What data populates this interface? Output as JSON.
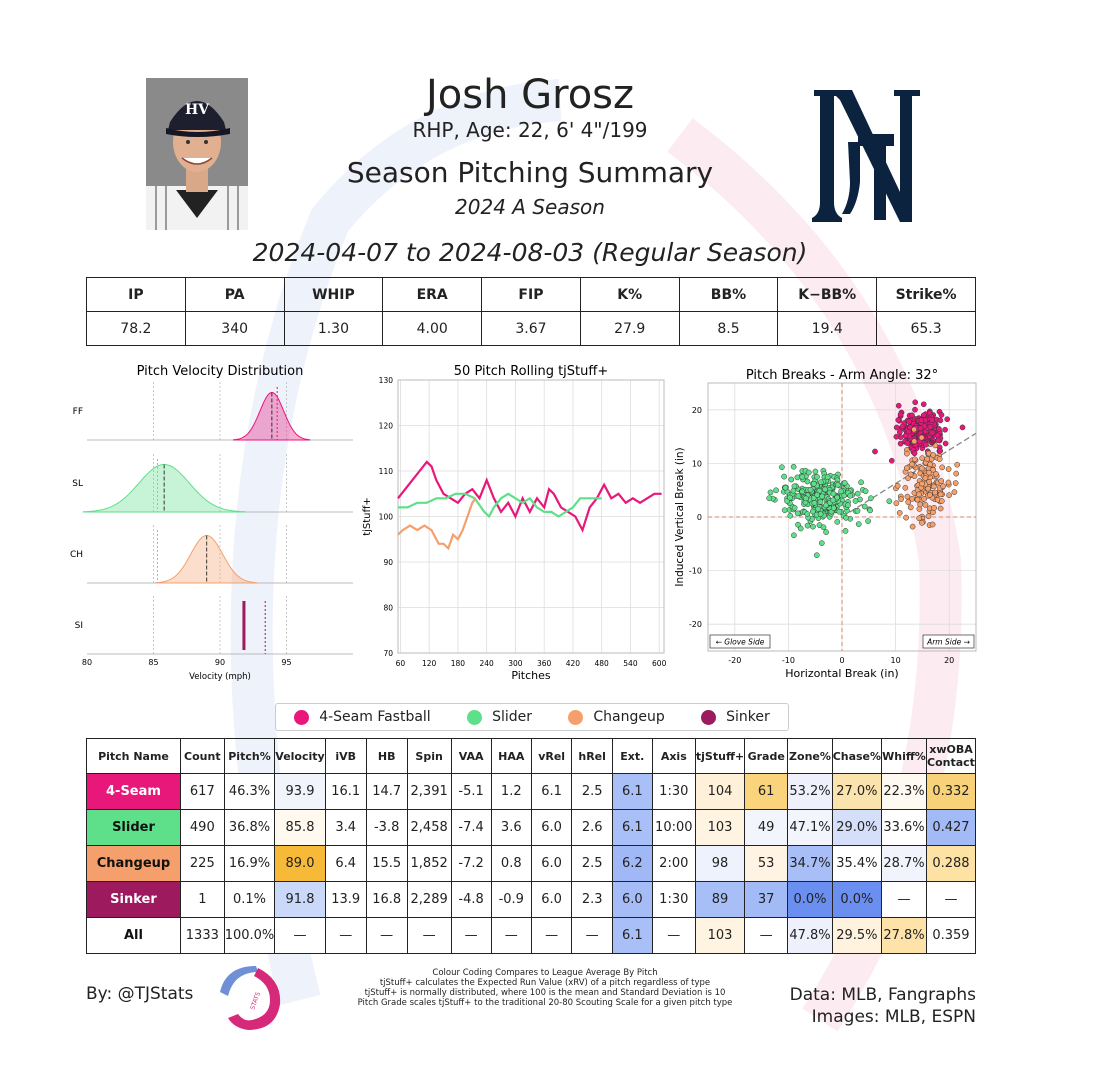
{
  "player": {
    "name": "Josh Grosz",
    "bio": "RHP, Age: 22, 6' 4\"/199",
    "summary_title": "Season Pitching Summary",
    "season_label": "2024 A Season",
    "date_range": "2024-04-07 to 2024-08-03 (Regular Season)"
  },
  "stats": {
    "headers": [
      "IP",
      "PA",
      "WHIP",
      "ERA",
      "FIP",
      "K%",
      "BB%",
      "K−BB%",
      "Strike%"
    ],
    "values": [
      "78.2",
      "340",
      "1.30",
      "4.00",
      "3.67",
      "27.9",
      "8.5",
      "19.4",
      "65.3"
    ]
  },
  "pitch_colors": {
    "FF": "#e8177a",
    "SL": "#5ee08a",
    "CH": "#f5a06c",
    "SI": "#9e1a5e"
  },
  "chart_data": [
    {
      "type": "area",
      "title": "Pitch Velocity Distribution",
      "xlabel": "Velocity (mph)",
      "xlim": [
        80,
        100
      ],
      "xticks": [
        80,
        85,
        90,
        95
      ],
      "rows": [
        {
          "label": "FF",
          "mean": 93.9,
          "sd": 0.9,
          "league_mean": 94.3
        },
        {
          "label": "SL",
          "mean": 85.8,
          "sd": 1.9,
          "league_mean": 85.3
        },
        {
          "label": "CH",
          "mean": 89.0,
          "sd": 1.2,
          "league_mean": 85.3
        },
        {
          "label": "SI",
          "mean": 91.8,
          "sd": 0.05,
          "league_mean": 93.4
        }
      ]
    },
    {
      "type": "line",
      "title": "50 Pitch Rolling tjStuff+",
      "xlabel": "Pitches",
      "ylabel": "tjStuff+",
      "xlim": [
        55,
        610
      ],
      "ylim": [
        70,
        130
      ],
      "xticks": [
        60,
        120,
        180,
        240,
        300,
        360,
        420,
        480,
        540,
        600
      ],
      "yticks": [
        70,
        80,
        90,
        100,
        110,
        120,
        130
      ],
      "series": [
        {
          "key": "FF",
          "x": [
            55,
            70,
            85,
            100,
            115,
            125,
            135,
            150,
            165,
            180,
            195,
            210,
            225,
            240,
            255,
            270,
            285,
            300,
            315,
            330,
            345,
            360,
            370,
            380,
            395,
            410,
            425,
            440,
            455,
            470,
            485,
            500,
            515,
            530,
            545,
            560,
            575,
            590,
            605
          ],
          "y": [
            104,
            106,
            108,
            110,
            112,
            111,
            108,
            105,
            104,
            103,
            105,
            106,
            104,
            108,
            104,
            101,
            103,
            100,
            104,
            101,
            104,
            102,
            106,
            105,
            102,
            101,
            100,
            97,
            102,
            104,
            107,
            104,
            105,
            103,
            104,
            103,
            104,
            105,
            105
          ]
        },
        {
          "key": "SL",
          "x": [
            55,
            75,
            95,
            115,
            135,
            155,
            175,
            195,
            215,
            235,
            245,
            255,
            270,
            285,
            300,
            315,
            330,
            345,
            360,
            375,
            390,
            405,
            420,
            435,
            450,
            465,
            480
          ],
          "y": [
            102,
            102,
            103,
            103,
            104,
            104,
            105,
            105,
            104,
            101,
            100,
            102,
            104,
            105,
            104,
            103,
            104,
            102,
            101,
            101,
            100,
            101,
            102,
            104,
            104,
            104,
            104
          ]
        },
        {
          "key": "CH",
          "x": [
            55,
            65,
            80,
            95,
            110,
            125,
            140,
            150,
            160,
            170,
            180,
            190,
            200,
            210,
            217
          ],
          "y": [
            96,
            97,
            98,
            97,
            98,
            97,
            94,
            94,
            93,
            96,
            95,
            97,
            100,
            103,
            104
          ]
        }
      ]
    },
    {
      "type": "scatter",
      "title": "Pitch Breaks - Arm Angle: 32°",
      "xlabel": "Horizontal Break (in)",
      "ylabel": "Induced Vertical Break (in)",
      "xlim": [
        -25,
        25
      ],
      "ylim": [
        -25,
        25
      ],
      "xticks": [
        -20,
        -10,
        0,
        10,
        20
      ],
      "yticks": [
        -20,
        -10,
        0,
        10,
        20
      ],
      "glove_label": "← Glove Side",
      "arm_label": "Arm Side →",
      "clusters": [
        {
          "key": "FF",
          "cx": 14.7,
          "cy": 16.1,
          "sx": 2.0,
          "sy": 1.6,
          "n": 300
        },
        {
          "key": "SL",
          "cx": -3.8,
          "cy": 3.4,
          "sx": 4.0,
          "sy": 2.6,
          "n": 280
        },
        {
          "key": "CH",
          "cx": 15.5,
          "cy": 6.4,
          "sx": 2.2,
          "sy": 3.5,
          "n": 150
        },
        {
          "key": "SI",
          "cx": 16.8,
          "cy": 13.9,
          "sx": 0.1,
          "sy": 0.1,
          "n": 1
        }
      ]
    }
  ],
  "legend": [
    {
      "key": "FF",
      "label": "4-Seam Fastball"
    },
    {
      "key": "SL",
      "label": "Slider"
    },
    {
      "key": "CH",
      "label": "Changeup"
    },
    {
      "key": "SI",
      "label": "Sinker"
    }
  ],
  "pitch_table": {
    "headers": [
      "Pitch Name",
      "Count",
      "Pitch%",
      "Velocity",
      "iVB",
      "HB",
      "Spin",
      "VAA",
      "HAA",
      "vRel",
      "hRel",
      "Ext.",
      "Axis",
      "tjStuff+",
      "Grade",
      "Zone%",
      "Chase%",
      "Whiff%",
      "xwOBA Contact"
    ],
    "rows": [
      {
        "key": "FF",
        "cells": [
          "4-Seam",
          "617",
          "46.3%",
          "93.9",
          "16.1",
          "14.7",
          "2,391",
          "-5.1",
          "1.2",
          "6.1",
          "2.5",
          "6.1",
          "1:30",
          "104",
          "61",
          "53.2%",
          "27.0%",
          "22.3%",
          "0.332"
        ],
        "bg": [
          "#e8177a",
          "#fff",
          "#fff",
          "#f1f4fb",
          "#fff",
          "#fff",
          "#fff",
          "#fff",
          "#fff",
          "#fff",
          "#fff",
          "#a9bff7",
          "#fff",
          "#fff1d9",
          "#f9d47c",
          "#eef1fb",
          "#fbe3ae",
          "#fffaf1",
          "#f8d279"
        ]
      },
      {
        "key": "SL",
        "cells": [
          "Slider",
          "490",
          "36.8%",
          "85.8",
          "3.4",
          "-3.8",
          "2,458",
          "-7.4",
          "3.6",
          "6.0",
          "2.6",
          "6.1",
          "10:00",
          "103",
          "49",
          "47.1%",
          "29.0%",
          "33.6%",
          "0.427"
        ],
        "bg": [
          "#5ee08a",
          "#fff",
          "#fff",
          "#fff9ef",
          "#fff",
          "#fff",
          "#fff",
          "#fff",
          "#fff",
          "#fff",
          "#fff",
          "#a9bff7",
          "#fff",
          "#fff4e1",
          "#f3f5fc",
          "#f3f5fc",
          "#d5dff9",
          "#fff",
          "#a2baf6"
        ]
      },
      {
        "key": "CH",
        "cells": [
          "Changeup",
          "225",
          "16.9%",
          "89.0",
          "6.4",
          "15.5",
          "1,852",
          "-7.2",
          "0.8",
          "6.0",
          "2.5",
          "6.2",
          "2:00",
          "98",
          "53",
          "34.7%",
          "35.4%",
          "28.7%",
          "0.288"
        ],
        "bg": [
          "#f5a06c",
          "#fff",
          "#fff",
          "#f6b938",
          "#fff",
          "#fff",
          "#fff",
          "#fff",
          "#fff",
          "#fff",
          "#fff",
          "#a0b8f6",
          "#fff",
          "#eef2fc",
          "#fff4e3",
          "#a8bef7",
          "#fff",
          "#f1f4fc",
          "#fde2a4"
        ]
      },
      {
        "key": "SI",
        "cells": [
          "Sinker",
          "1",
          "0.1%",
          "91.8",
          "13.9",
          "16.8",
          "2,289",
          "-4.8",
          "-0.9",
          "6.0",
          "2.3",
          "6.0",
          "1:30",
          "89",
          "37",
          "0.0%",
          "0.0%",
          "—",
          "—"
        ],
        "bg": [
          "#9e1a5e",
          "#fff",
          "#fff",
          "#cad8f9",
          "#fff",
          "#fff",
          "#fff",
          "#fff",
          "#fff",
          "#fff",
          "#fff",
          "#a6bcf6",
          "#fff",
          "#a8bef7",
          "#a2baf6",
          "#6a8ff0",
          "#6a8ff0",
          "#fff",
          "#fff"
        ]
      },
      {
        "key": "ALL",
        "cells": [
          "All",
          "1333",
          "100.0%",
          "—",
          "—",
          "—",
          "—",
          "—",
          "—",
          "—",
          "—",
          "6.1",
          "—",
          "103",
          "—",
          "47.8%",
          "29.5%",
          "27.8%",
          "0.359"
        ],
        "bg": [
          "#fff",
          "#fff",
          "#fff",
          "#fff",
          "#fff",
          "#fff",
          "#fff",
          "#fff",
          "#fff",
          "#fff",
          "#fff",
          "#a9bff7",
          "#fff",
          "#fff4e1",
          "#fff",
          "#eef1fb",
          "#fff3df",
          "#fde3a9",
          "#fff"
        ]
      }
    ]
  },
  "footer": {
    "byline": "By: @TJStats",
    "notes": [
      "Colour Coding Compares to League Average By Pitch",
      "tjStuff+ calculates the Expected Run Value (xRV) of a pitch regardless of type",
      "tjStuff+ is normally distributed, where 100 is the mean and Standard Deviation is 10",
      "Pitch Grade scales tjStuff+ to the traditional 20-80 Scouting Scale for a given pitch type"
    ],
    "data_source": "Data: MLB, Fangraphs",
    "images_source": "Images: MLB, ESPN",
    "logo_text": "STATS"
  }
}
